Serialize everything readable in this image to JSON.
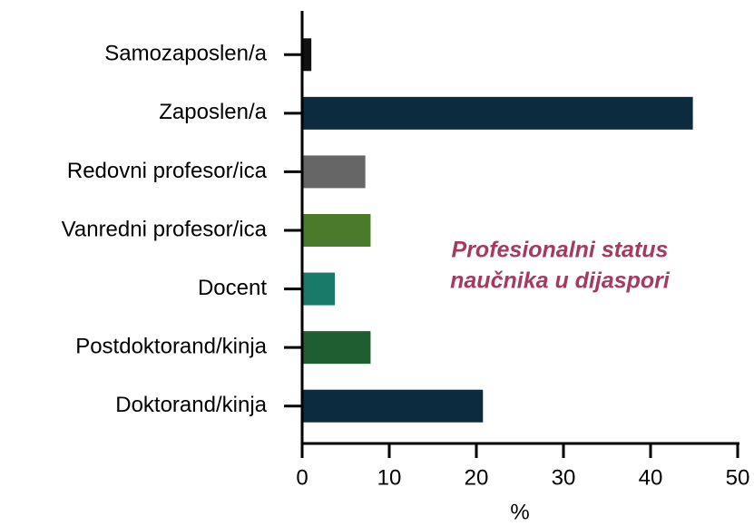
{
  "chart_data": {
    "type": "hbar",
    "categories": [
      "Samozaposlen/a",
      "Zaposlen/a",
      "Redovni profesor/ica",
      "Vanredni profesor/ica",
      "Docent",
      "Postdoktorand/kinja",
      "Doktorand/kinja"
    ],
    "values": [
      0.9,
      44.7,
      7.1,
      7.7,
      3.6,
      7.7,
      20.6
    ],
    "colors": [
      "#111111",
      "#0d2b3e",
      "#666666",
      "#4a7a2a",
      "#1a7a6a",
      "#1e5e30",
      "#0d2b3e"
    ],
    "xlabel": "%",
    "xlim": [
      0,
      50
    ],
    "xticks": [
      0,
      10,
      20,
      30,
      40,
      50
    ],
    "annotation": [
      "Profesionalni status",
      "naučnika u dijaspori"
    ]
  }
}
